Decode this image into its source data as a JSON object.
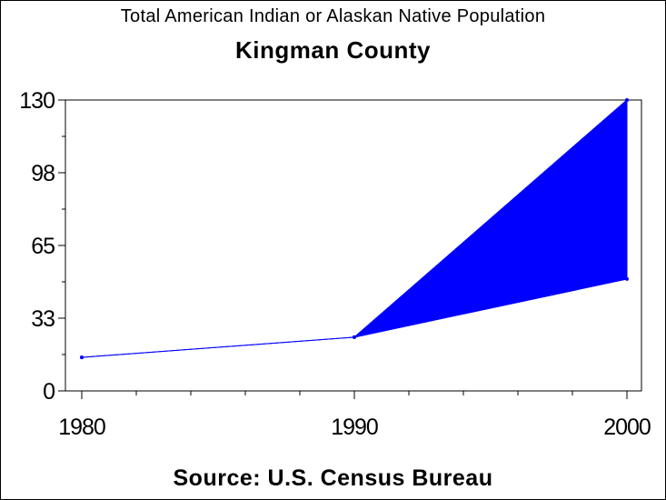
{
  "chart_data": {
    "type": "line",
    "subtitle": "Total American Indian or Alaskan Native Population",
    "title": "Kingman County",
    "source": "Source: U.S. Census Bureau",
    "x": [
      1980,
      1990,
      2000
    ],
    "x_tick_labels": [
      "1980",
      "1990",
      "2000"
    ],
    "y_tick_labels": [
      "0",
      "33",
      "65",
      "98",
      "130"
    ],
    "y_ticks": [
      0,
      32.5,
      65,
      97.5,
      130
    ],
    "xlim": [
      1980,
      2000
    ],
    "ylim": [
      0,
      130
    ],
    "series": [
      {
        "values": [
          15,
          24,
          50
        ]
      },
      {
        "values": [
          15,
          24,
          130
        ]
      }
    ],
    "range_band": {
      "x": [
        1990,
        2000
      ],
      "low": [
        24,
        50
      ],
      "high": [
        24,
        130
      ]
    },
    "colors": {
      "series": "#0000ff",
      "band": "#0000ff",
      "axes": "#000000"
    },
    "grid": false
  }
}
